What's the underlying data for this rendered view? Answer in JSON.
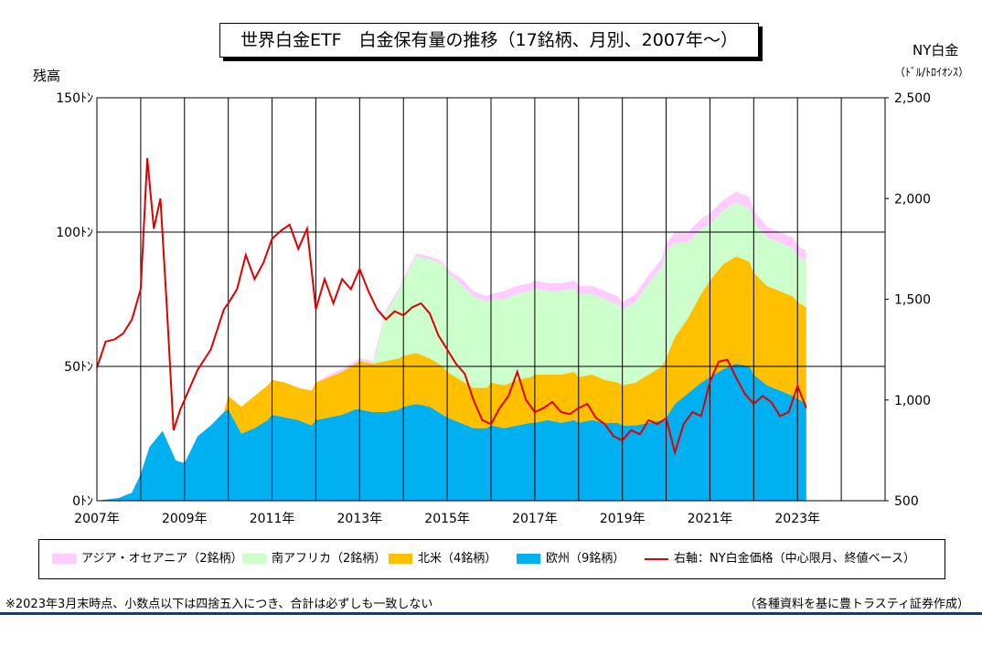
{
  "chart_data": {
    "type": "area",
    "title": "世界白金ETF　白金保有量の推移（17銘柄、月別、2007年～）",
    "left_axis": {
      "title": "残高",
      "ylim": [
        0,
        150
      ],
      "ticks": [
        0,
        50,
        100,
        150
      ],
      "unit_suffix": "ﾄﾝ"
    },
    "right_axis": {
      "title": "NY白金",
      "unit": "（ﾄﾞﾙ/ﾄﾛｲｵﾝｽ）",
      "ylim": [
        500,
        2500
      ],
      "ticks": [
        "500",
        "1,000",
        "1,500",
        "2,000",
        "2,500"
      ],
      "tick_values": [
        500,
        1000,
        1500,
        2000,
        2500
      ]
    },
    "x_axis": {
      "ticks": [
        "2007年",
        "2009年",
        "2011年",
        "2013年",
        "2015年",
        "2017年",
        "2019年",
        "2021年",
        "2023年"
      ],
      "tick_years": [
        2007,
        2009,
        2011,
        2013,
        2015,
        2017,
        2019,
        2021,
        2023
      ],
      "xlim": [
        2007,
        2025
      ]
    },
    "grid": true,
    "legend_position": "bottom",
    "x": [
      2007.0,
      2007.5,
      2007.8,
      2008.0,
      2008.2,
      2008.5,
      2008.8,
      2009.0,
      2009.3,
      2009.6,
      2009.9,
      2010.0,
      2010.3,
      2010.6,
      2010.9,
      2011.0,
      2011.3,
      2011.6,
      2011.9,
      2012.0,
      2012.3,
      2012.6,
      2012.9,
      2013.0,
      2013.3,
      2013.6,
      2013.9,
      2014.0,
      2014.3,
      2014.6,
      2014.9,
      2015.0,
      2015.3,
      2015.6,
      2015.9,
      2016.0,
      2016.3,
      2016.6,
      2016.9,
      2017.0,
      2017.3,
      2017.6,
      2017.9,
      2018.0,
      2018.3,
      2018.6,
      2018.9,
      2019.0,
      2019.3,
      2019.6,
      2019.9,
      2020.0,
      2020.2,
      2020.5,
      2020.8,
      2021.0,
      2021.3,
      2021.6,
      2021.9,
      2022.0,
      2022.3,
      2022.6,
      2022.9,
      2023.0,
      2023.2
    ],
    "series": [
      {
        "name": "欧州（9銘柄）",
        "color": "#00b0f0",
        "values": [
          0,
          1,
          3,
          10,
          20,
          26,
          15,
          14,
          24,
          28,
          33,
          34,
          25,
          27,
          30,
          32,
          31,
          30,
          28,
          30,
          31,
          32,
          34,
          34,
          33,
          33,
          34,
          35,
          36,
          35,
          32,
          31,
          29,
          27,
          27,
          28,
          27,
          28,
          29,
          29,
          30,
          29,
          30,
          29,
          30,
          29,
          29,
          28,
          28,
          29,
          30,
          31,
          36,
          40,
          44,
          46,
          49,
          51,
          50,
          47,
          43,
          41,
          39,
          38,
          36
        ]
      },
      {
        "name": "北米（4銘柄）",
        "color": "#ffc000",
        "values": [
          0,
          0,
          0,
          0,
          0,
          0,
          0,
          0,
          0,
          0,
          0,
          5,
          10,
          12,
          13,
          13,
          13,
          12,
          13,
          14,
          15,
          16,
          17,
          18,
          18,
          19,
          19,
          19,
          19,
          18,
          18,
          17,
          16,
          15,
          15,
          16,
          16,
          17,
          17,
          18,
          17,
          18,
          18,
          17,
          17,
          16,
          15,
          15,
          16,
          18,
          20,
          22,
          25,
          28,
          33,
          36,
          39,
          40,
          39,
          38,
          37,
          37,
          37,
          36,
          36
        ]
      },
      {
        "name": "南アフリカ（2銘柄）",
        "color": "#ccffcc",
        "values": [
          0,
          0,
          0,
          0,
          0,
          0,
          0,
          0,
          0,
          0,
          0,
          0,
          0,
          0,
          0,
          0,
          0,
          0,
          0,
          0,
          0,
          0,
          0,
          0,
          0,
          18,
          25,
          28,
          36,
          37,
          38,
          37,
          36,
          34,
          32,
          31,
          32,
          32,
          32,
          32,
          31,
          31,
          31,
          31,
          30,
          30,
          29,
          28,
          30,
          34,
          37,
          40,
          35,
          28,
          24,
          21,
          20,
          20,
          20,
          19,
          18,
          18,
          18,
          17,
          17
        ]
      },
      {
        "name": "アジア・オセアニア（2銘柄）",
        "color": "#ffccff",
        "values": [
          0,
          0,
          0,
          0,
          0,
          0,
          0,
          0,
          0,
          0,
          0,
          0,
          0,
          0,
          0,
          0,
          0,
          0,
          0,
          0,
          1,
          1,
          1,
          1,
          1,
          1,
          1,
          1,
          1,
          1,
          1,
          1,
          2,
          2,
          2,
          2,
          3,
          3,
          3,
          3,
          3,
          3,
          3,
          3,
          3,
          3,
          3,
          3,
          3,
          3,
          3,
          3,
          4,
          4,
          4,
          4,
          4,
          4,
          4,
          4,
          4,
          4,
          4,
          4,
          4
        ]
      }
    ],
    "line_series": {
      "name": "右軸：NY白金価格（中心限月、終値ベース）",
      "color": "#e00000",
      "x": [
        2007.0,
        2007.2,
        2007.4,
        2007.6,
        2007.8,
        2008.0,
        2008.15,
        2008.3,
        2008.45,
        2008.6,
        2008.75,
        2008.9,
        2009.0,
        2009.3,
        2009.6,
        2009.9,
        2010.0,
        2010.2,
        2010.4,
        2010.6,
        2010.8,
        2011.0,
        2011.2,
        2011.4,
        2011.6,
        2011.8,
        2012.0,
        2012.2,
        2012.4,
        2012.6,
        2012.8,
        2013.0,
        2013.2,
        2013.4,
        2013.6,
        2013.8,
        2014.0,
        2014.2,
        2014.4,
        2014.6,
        2014.8,
        2015.0,
        2015.2,
        2015.4,
        2015.6,
        2015.8,
        2016.0,
        2016.2,
        2016.4,
        2016.6,
        2016.8,
        2017.0,
        2017.2,
        2017.4,
        2017.6,
        2017.8,
        2018.0,
        2018.2,
        2018.4,
        2018.6,
        2018.8,
        2019.0,
        2019.2,
        2019.4,
        2019.6,
        2019.8,
        2020.0,
        2020.2,
        2020.4,
        2020.6,
        2020.8,
        2021.0,
        2021.2,
        2021.4,
        2021.6,
        2021.8,
        2022.0,
        2022.2,
        2022.4,
        2022.6,
        2022.8,
        2023.0,
        2023.2
      ],
      "values": [
        1160,
        1290,
        1300,
        1330,
        1400,
        1550,
        2200,
        1850,
        2000,
        1450,
        850,
        950,
        1000,
        1150,
        1250,
        1450,
        1480,
        1550,
        1720,
        1600,
        1680,
        1800,
        1840,
        1870,
        1750,
        1850,
        1450,
        1600,
        1480,
        1600,
        1550,
        1650,
        1540,
        1450,
        1400,
        1440,
        1420,
        1460,
        1480,
        1430,
        1320,
        1250,
        1180,
        1130,
        1000,
        900,
        880,
        960,
        1020,
        1140,
        1000,
        940,
        960,
        990,
        940,
        930,
        960,
        980,
        910,
        880,
        820,
        800,
        850,
        830,
        900,
        880,
        910,
        740,
        880,
        940,
        920,
        1090,
        1190,
        1200,
        1110,
        1030,
        980,
        1020,
        990,
        920,
        940,
        1070,
        960
      ]
    }
  },
  "left_axis_labels": [
    "0ﾄﾝ",
    "50ﾄﾝ",
    "100ﾄﾝ",
    "150ﾄﾝ"
  ],
  "legend": [
    {
      "label": "アジア・オセアニア（2銘柄）",
      "color": "#ffccff",
      "kind": "area"
    },
    {
      "label": "南アフリカ（2銘柄）",
      "color": "#ccffcc",
      "kind": "area"
    },
    {
      "label": "北米（4銘柄）",
      "color": "#ffc000",
      "kind": "area"
    },
    {
      "label": "欧州（9銘柄）",
      "color": "#00b0f0",
      "kind": "area"
    },
    {
      "label": "右軸：NY白金価格（中心限月、終値ベース）",
      "color": "#e00000",
      "kind": "line"
    }
  ],
  "footnote": "※2023年3月末時点、小数点以下は四捨五入につき、合計は必ずしも一致しない",
  "source": "（各種資料を基に豊トラスティ証券作成）"
}
